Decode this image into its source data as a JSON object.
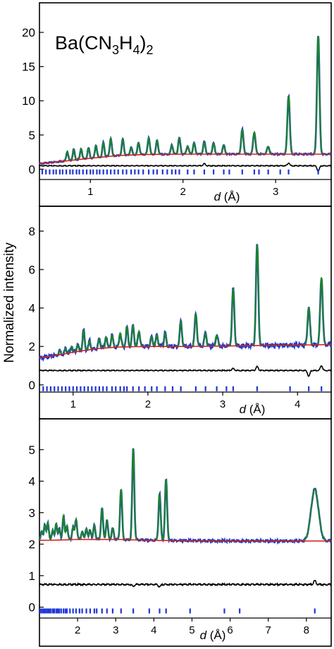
{
  "figure": {
    "ylabel": "Normalized intensity",
    "xlabel_italic": "d",
    "xlabel_unit": " (Å)"
  },
  "colors": {
    "observed": "#1f35d6",
    "calculated": "#1a8a1a",
    "background": "#d42020",
    "difference": "#000000",
    "tick_marks": "#1f35d6"
  },
  "chart_data": [
    {
      "type": "line",
      "panel": "top",
      "title": "Ba(CN3H4)2",
      "title_parts": {
        "base": "Ba(CN",
        "sub1": "3",
        "mid": "H",
        "sub2": "4",
        "end": ")",
        "sub3": "2"
      },
      "xlim": [
        0.45,
        3.6
      ],
      "ylim": [
        -1.3,
        23.5
      ],
      "xticks": [
        1,
        2,
        3
      ],
      "xtick_labels": [
        "1",
        "2",
        "3"
      ],
      "yticks": [
        0,
        5,
        10,
        15,
        20
      ],
      "ytick_labels": [
        "0",
        "5",
        "10",
        "15",
        "20"
      ],
      "background_curve": {
        "x": [
          0.45,
          0.8,
          1.0,
          1.3,
          1.6,
          2.0,
          2.5,
          3.0,
          3.6
        ],
        "y": [
          0.8,
          1.3,
          1.6,
          2.0,
          2.15,
          2.2,
          2.2,
          2.2,
          2.2
        ]
      },
      "peaks": [
        {
          "x": 3.46,
          "height": 19.5
        },
        {
          "x": 3.14,
          "height": 10.7
        },
        {
          "x": 2.92,
          "height": 3.3
        },
        {
          "x": 2.77,
          "height": 5.4
        },
        {
          "x": 2.64,
          "height": 5.8
        },
        {
          "x": 2.44,
          "height": 3.5
        },
        {
          "x": 2.33,
          "height": 3.8
        },
        {
          "x": 2.23,
          "height": 4.0
        },
        {
          "x": 2.12,
          "height": 3.8
        },
        {
          "x": 2.05,
          "height": 3.4
        },
        {
          "x": 1.96,
          "height": 4.6
        },
        {
          "x": 1.88,
          "height": 3.5
        },
        {
          "x": 1.72,
          "height": 4.2
        },
        {
          "x": 1.63,
          "height": 4.6
        },
        {
          "x": 1.52,
          "height": 3.9
        },
        {
          "x": 1.44,
          "height": 3.2
        },
        {
          "x": 1.35,
          "height": 4.4
        },
        {
          "x": 1.22,
          "height": 4.5
        },
        {
          "x": 1.14,
          "height": 3.9
        },
        {
          "x": 1.06,
          "height": 3.5
        },
        {
          "x": 0.98,
          "height": 3.1
        },
        {
          "x": 0.9,
          "height": 3.0
        },
        {
          "x": 0.82,
          "height": 2.9
        },
        {
          "x": 0.75,
          "height": 2.6
        }
      ],
      "difference_offset": 0.5,
      "difference_spikes": [
        {
          "x": 3.46,
          "amp": -0.8
        },
        {
          "x": 3.14,
          "amp": 0.4
        },
        {
          "x": 2.23,
          "amp": 0.3
        }
      ],
      "tick_row_y": -0.4,
      "reflections": [
        0.48,
        0.52,
        0.56,
        0.6,
        0.63,
        0.67,
        0.7,
        0.74,
        0.78,
        0.81,
        0.85,
        0.88,
        0.92,
        0.96,
        1.0,
        1.03,
        1.07,
        1.1,
        1.14,
        1.18,
        1.22,
        1.26,
        1.3,
        1.35,
        1.39,
        1.44,
        1.48,
        1.52,
        1.57,
        1.63,
        1.68,
        1.72,
        1.78,
        1.83,
        1.88,
        1.92,
        1.96,
        2.05,
        2.12,
        2.23,
        2.33,
        2.44,
        2.5,
        2.64,
        2.77,
        2.82,
        2.92,
        3.05,
        3.14,
        3.46
      ]
    },
    {
      "type": "line",
      "panel": "middle",
      "xlim": [
        0.55,
        4.45
      ],
      "ylim": [
        -0.3,
        9.0
      ],
      "xticks": [
        1,
        2,
        3,
        4
      ],
      "xtick_labels": [
        "1",
        "2",
        "3",
        "4"
      ],
      "yticks": [
        0,
        2,
        4,
        6,
        8
      ],
      "ytick_labels": [
        "0",
        "2",
        "4",
        "6",
        "8"
      ],
      "background_curve": {
        "x": [
          0.55,
          0.8,
          1.0,
          1.3,
          1.6,
          2.0,
          2.5,
          3.0,
          3.5,
          4.0,
          4.45
        ],
        "y": [
          1.4,
          1.55,
          1.7,
          1.88,
          1.97,
          2.0,
          2.0,
          2.02,
          2.05,
          2.07,
          2.1
        ]
      },
      "peaks": [
        {
          "x": 4.32,
          "height": 5.6
        },
        {
          "x": 4.15,
          "height": 4.0
        },
        {
          "x": 3.46,
          "height": 7.3
        },
        {
          "x": 3.14,
          "height": 5.0
        },
        {
          "x": 2.92,
          "height": 2.6
        },
        {
          "x": 2.77,
          "height": 2.7
        },
        {
          "x": 2.64,
          "height": 3.7
        },
        {
          "x": 2.44,
          "height": 3.3
        },
        {
          "x": 2.23,
          "height": 2.7
        },
        {
          "x": 2.12,
          "height": 2.6
        },
        {
          "x": 2.05,
          "height": 2.5
        },
        {
          "x": 1.88,
          "height": 2.8
        },
        {
          "x": 1.8,
          "height": 3.1
        },
        {
          "x": 1.72,
          "height": 3.0
        },
        {
          "x": 1.63,
          "height": 2.7
        },
        {
          "x": 1.52,
          "height": 2.6
        },
        {
          "x": 1.44,
          "height": 2.5
        },
        {
          "x": 1.35,
          "height": 2.4
        },
        {
          "x": 1.22,
          "height": 2.3
        },
        {
          "x": 1.14,
          "height": 2.85
        },
        {
          "x": 1.06,
          "height": 2.1
        },
        {
          "x": 0.98,
          "height": 2.0
        },
        {
          "x": 0.9,
          "height": 1.9
        },
        {
          "x": 0.82,
          "height": 1.8
        }
      ],
      "difference_offset": 0.75,
      "difference_spikes": [
        {
          "x": 4.32,
          "amp": 0.25
        },
        {
          "x": 4.15,
          "amp": -0.3
        },
        {
          "x": 3.46,
          "amp": 0.2
        },
        {
          "x": 3.14,
          "amp": 0.1
        }
      ],
      "tick_row_y": -0.2,
      "reflections": [
        0.6,
        0.65,
        0.7,
        0.75,
        0.8,
        0.85,
        0.9,
        0.95,
        1.0,
        1.05,
        1.1,
        1.15,
        1.2,
        1.25,
        1.3,
        1.35,
        1.4,
        1.45,
        1.52,
        1.57,
        1.63,
        1.68,
        1.72,
        1.8,
        1.88,
        1.96,
        2.05,
        2.12,
        2.23,
        2.33,
        2.44,
        2.64,
        2.77,
        2.92,
        3.05,
        3.14,
        3.46,
        3.9,
        4.15,
        4.32
      ]
    },
    {
      "type": "line",
      "panel": "bottom",
      "xlim": [
        1.0,
        8.65
      ],
      "ylim": [
        -0.3,
        5.8
      ],
      "xticks": [
        2,
        3,
        4,
        5,
        6,
        7,
        8
      ],
      "xtick_labels": [
        "2",
        "3",
        "4",
        "5",
        "6",
        "7",
        "8"
      ],
      "yticks": [
        0,
        1,
        2,
        3,
        4,
        5
      ],
      "ytick_labels": [
        "0",
        "1",
        "2",
        "3",
        "4",
        "5"
      ],
      "background_curve": {
        "x": [
          1.0,
          1.5,
          2.0,
          2.5,
          3.0,
          4.0,
          5.0,
          6.0,
          7.0,
          8.0,
          8.65
        ],
        "y": [
          2.12,
          2.13,
          2.15,
          2.15,
          2.15,
          2.12,
          2.11,
          2.1,
          2.1,
          2.1,
          2.1
        ]
      },
      "peaks": [
        {
          "x": 8.22,
          "height": 3.75
        },
        {
          "x": 4.32,
          "height": 4.05
        },
        {
          "x": 4.15,
          "height": 3.6
        },
        {
          "x": 3.46,
          "height": 5.05
        },
        {
          "x": 3.14,
          "height": 3.75
        },
        {
          "x": 2.92,
          "height": 2.5
        },
        {
          "x": 2.77,
          "height": 2.75
        },
        {
          "x": 2.64,
          "height": 3.15
        },
        {
          "x": 2.44,
          "height": 2.6
        },
        {
          "x": 2.33,
          "height": 2.45
        },
        {
          "x": 2.23,
          "height": 2.5
        },
        {
          "x": 2.12,
          "height": 2.4
        },
        {
          "x": 1.96,
          "height": 2.8
        },
        {
          "x": 1.88,
          "height": 2.55
        },
        {
          "x": 1.72,
          "height": 2.6
        },
        {
          "x": 1.63,
          "height": 2.9
        },
        {
          "x": 1.52,
          "height": 2.5
        },
        {
          "x": 1.44,
          "height": 2.65
        },
        {
          "x": 1.35,
          "height": 2.45
        },
        {
          "x": 1.22,
          "height": 2.7
        },
        {
          "x": 1.14,
          "height": 2.6
        },
        {
          "x": 1.06,
          "height": 2.4
        }
      ],
      "difference_offset": 0.72,
      "difference_spikes": [
        {
          "x": 8.22,
          "amp": 0.12
        },
        {
          "x": 4.15,
          "amp": -0.08
        },
        {
          "x": 3.46,
          "amp": -0.06
        }
      ],
      "tick_row_y": -0.12,
      "reflections": [
        1.02,
        1.06,
        1.1,
        1.14,
        1.18,
        1.22,
        1.26,
        1.3,
        1.35,
        1.39,
        1.44,
        1.48,
        1.52,
        1.57,
        1.63,
        1.68,
        1.72,
        1.8,
        1.88,
        1.96,
        2.05,
        2.12,
        2.23,
        2.33,
        2.44,
        2.5,
        2.64,
        2.77,
        2.92,
        3.14,
        3.46,
        3.88,
        4.15,
        4.32,
        4.95,
        5.85,
        6.25,
        8.22
      ]
    }
  ]
}
